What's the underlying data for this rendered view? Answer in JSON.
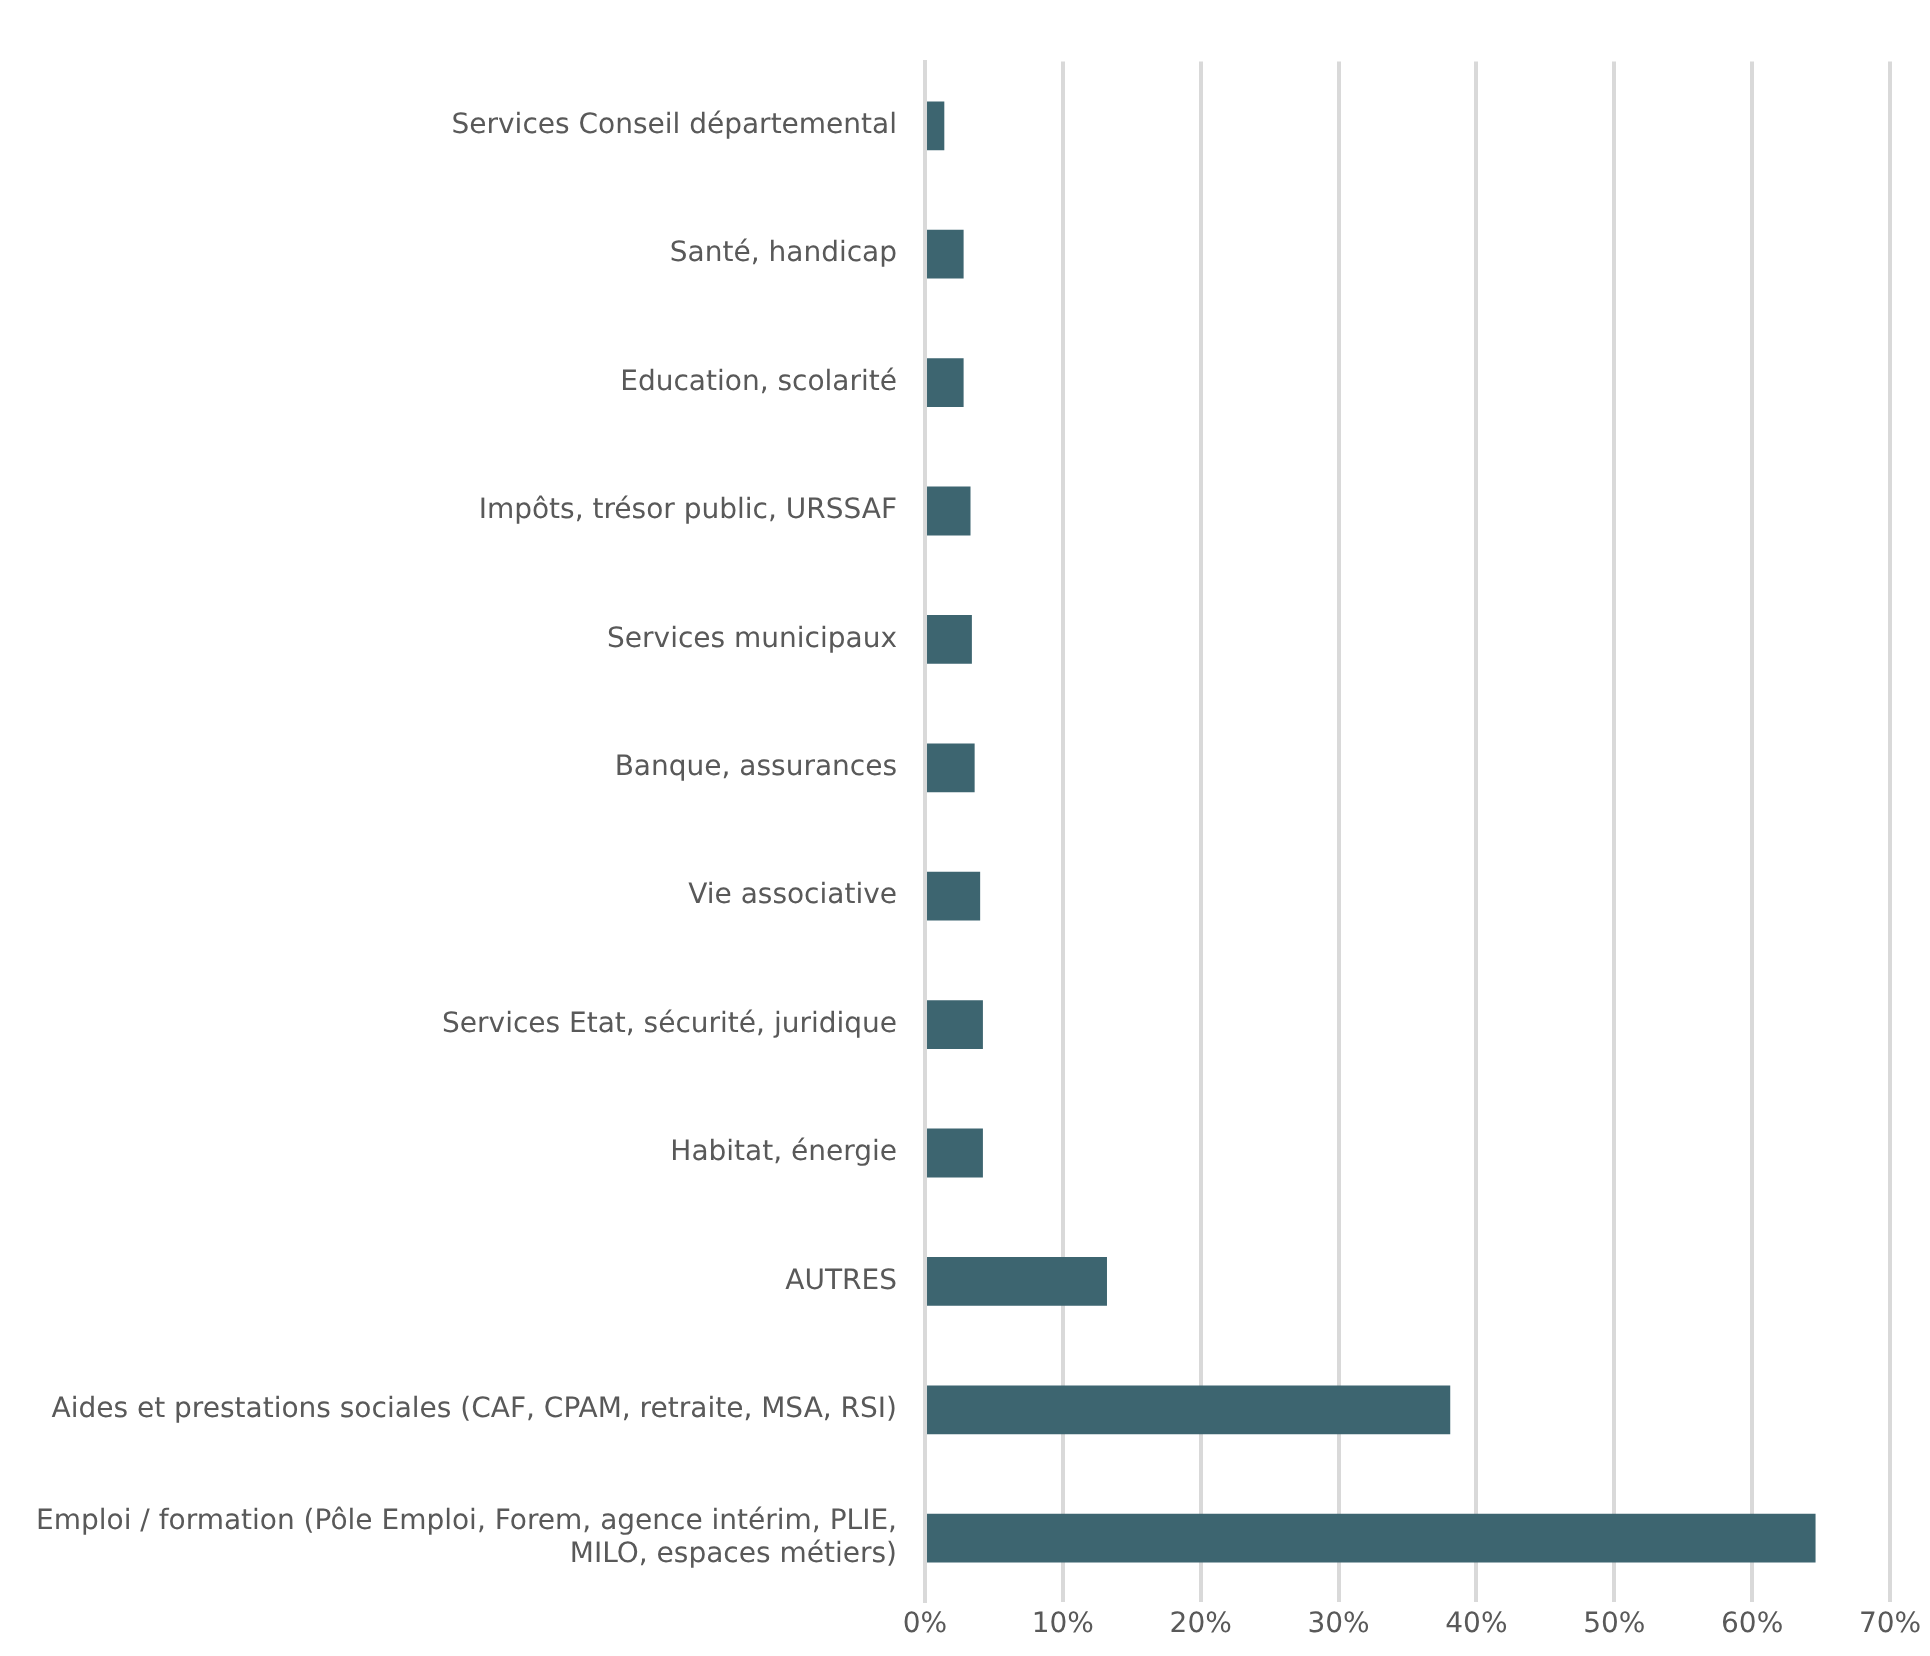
{
  "chart_data": {
    "type": "bar",
    "orientation": "horizontal",
    "categories": [
      "Services Conseil départemental",
      "Santé, handicap",
      "Education, scolarité",
      "Impôts, trésor public, URSSAF",
      "Services municipaux",
      "Banque, assurances",
      "Vie associative",
      "Services Etat, sécurité, juridique",
      "Habitat, énergie",
      "AUTRES",
      "Aides et prestations sociales (CAF, CPAM, retraite, MSA, RSI)",
      "Emploi / formation (Pôle Emploi, Forem, agence intérim, PLIE, MILO, espaces métiers)"
    ],
    "values": [
      1.4,
      2.8,
      2.8,
      3.3,
      3.4,
      3.6,
      4.0,
      4.2,
      4.2,
      13.2,
      38.1,
      64.6
    ],
    "color": "#3d6570",
    "xlim": [
      0,
      70
    ],
    "xticks": [
      {
        "value": 0,
        "label": "0%"
      },
      {
        "value": 10,
        "label": "10%"
      },
      {
        "value": 20,
        "label": "20%"
      },
      {
        "value": 30,
        "label": "30%"
      },
      {
        "value": 40,
        "label": "40%"
      },
      {
        "value": 50,
        "label": "50%"
      },
      {
        "value": 60,
        "label": "60%"
      },
      {
        "value": 70,
        "label": "70%"
      }
    ],
    "grid": "x",
    "legend": false
  }
}
